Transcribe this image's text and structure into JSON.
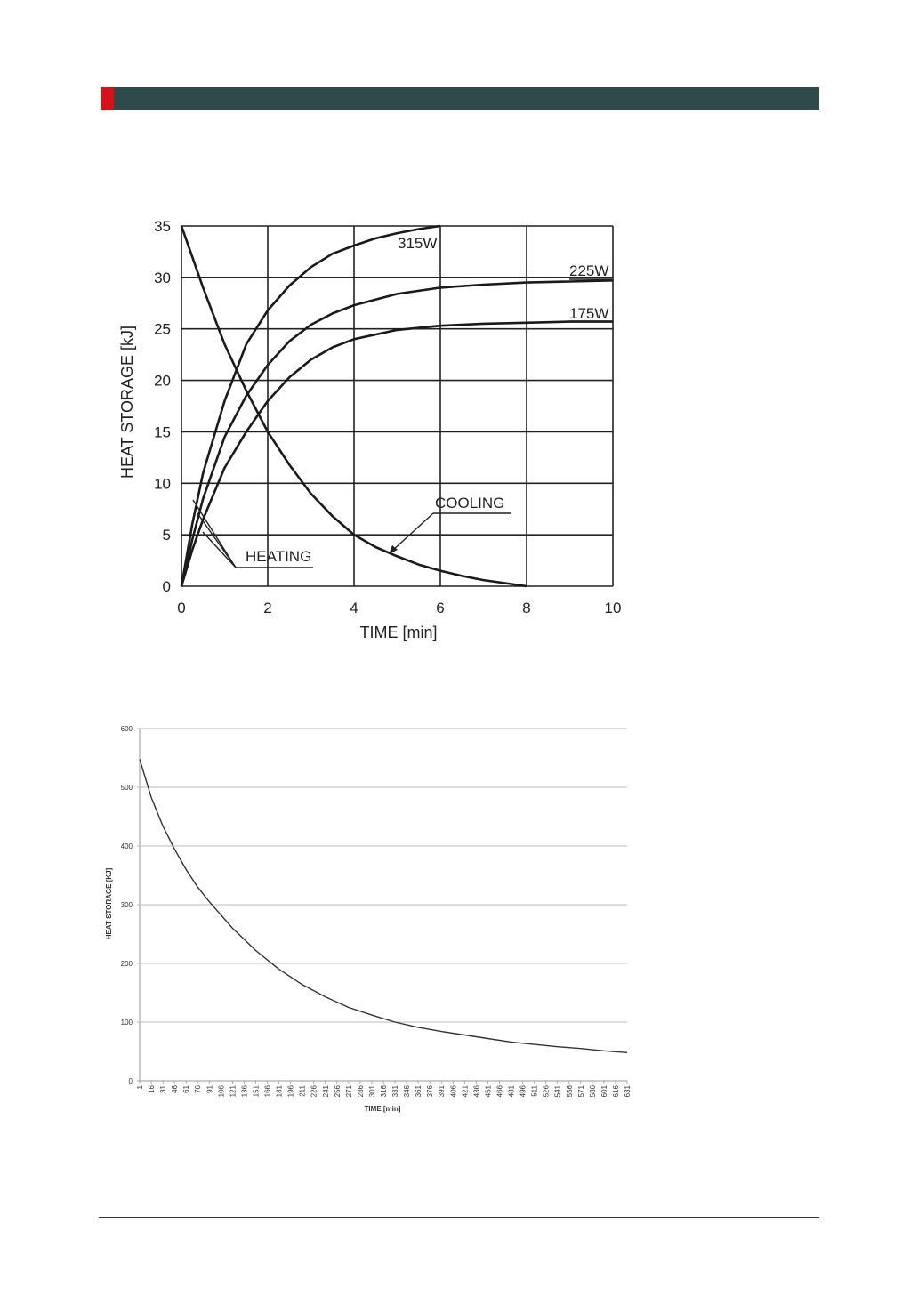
{
  "colors": {
    "header_bar": "#2f4a4a",
    "header_accent": "#d4121a",
    "ink": "#222222"
  },
  "chart_data": [
    {
      "type": "line",
      "xlabel": "TIME  [min]",
      "ylabel": "HEAT STORAGE  [kJ]",
      "xlim": [
        0,
        10
      ],
      "ylim": [
        0,
        35
      ],
      "xticks": [
        "0",
        "2",
        "4",
        "6",
        "8",
        "10"
      ],
      "yticks": [
        "0",
        "5",
        "10",
        "15",
        "20",
        "25",
        "30",
        "35"
      ],
      "grid": true,
      "series": [
        {
          "name": "315W",
          "x": [
            0,
            0.25,
            0.5,
            1,
            1.5,
            2,
            2.5,
            3,
            3.5,
            4,
            4.5,
            5,
            5.5,
            6
          ],
          "values": [
            0,
            6,
            11,
            18,
            23.5,
            26.8,
            29.2,
            31,
            32.3,
            33.1,
            33.8,
            34.3,
            34.7,
            35
          ]
        },
        {
          "name": "225W",
          "x": [
            0,
            0.25,
            0.5,
            1,
            1.5,
            2,
            2.5,
            3,
            3.5,
            4,
            5,
            6,
            7,
            8,
            9,
            10
          ],
          "values": [
            0,
            4.5,
            8.5,
            14.5,
            18.5,
            21.5,
            23.8,
            25.4,
            26.5,
            27.3,
            28.4,
            29.0,
            29.3,
            29.5,
            29.6,
            29.7
          ]
        },
        {
          "name": "175W",
          "x": [
            0,
            0.25,
            0.5,
            1,
            1.5,
            2,
            2.5,
            3,
            3.5,
            4,
            5,
            6,
            7,
            8,
            9,
            10
          ],
          "values": [
            0,
            3.5,
            6.5,
            11.5,
            15,
            18,
            20.3,
            22,
            23.2,
            24,
            24.9,
            25.3,
            25.5,
            25.6,
            25.7,
            25.7
          ]
        },
        {
          "name": "COOLING",
          "x": [
            0,
            0.5,
            1,
            1.5,
            2,
            2.5,
            3,
            3.5,
            4,
            4.5,
            5,
            5.5,
            6,
            6.5,
            7,
            7.5,
            8
          ],
          "values": [
            35,
            29,
            23.5,
            19,
            15,
            11.8,
            9,
            6.8,
            5,
            3.8,
            2.9,
            2.1,
            1.5,
            1.0,
            0.6,
            0.3,
            0
          ]
        }
      ],
      "annotations": [
        "315W",
        "225W",
        "175W",
        "COOLING",
        "HEATING"
      ]
    },
    {
      "type": "line",
      "xlabel": "TIME [min]",
      "ylabel": "HEAT STORAGE [KJ]",
      "xlim": [
        1,
        631
      ],
      "ylim": [
        0,
        600
      ],
      "yticks": [
        "0",
        "100",
        "200",
        "300",
        "400",
        "500",
        "600"
      ],
      "xticks": [
        "1",
        "16",
        "31",
        "46",
        "61",
        "76",
        "91",
        "106",
        "121",
        "136",
        "151",
        "166",
        "181",
        "196",
        "211",
        "226",
        "241",
        "256",
        "271",
        "286",
        "301",
        "316",
        "331",
        "346",
        "361",
        "376",
        "391",
        "406",
        "421",
        "436",
        "451",
        "466",
        "481",
        "496",
        "511",
        "526",
        "541",
        "556",
        "571",
        "586",
        "601",
        "616",
        "631"
      ],
      "grid": true,
      "series": [
        {
          "x": [
            1,
            16,
            31,
            46,
            61,
            76,
            91,
            121,
            151,
            181,
            211,
            241,
            271,
            301,
            331,
            361,
            391,
            421,
            451,
            481,
            511,
            541,
            571,
            601,
            631
          ],
          "values": [
            548,
            483,
            434,
            395,
            360,
            330,
            305,
            260,
            222,
            190,
            164,
            143,
            125,
            112,
            100,
            91,
            84,
            78,
            72,
            66,
            62,
            58,
            55,
            51,
            48
          ]
        }
      ]
    }
  ]
}
